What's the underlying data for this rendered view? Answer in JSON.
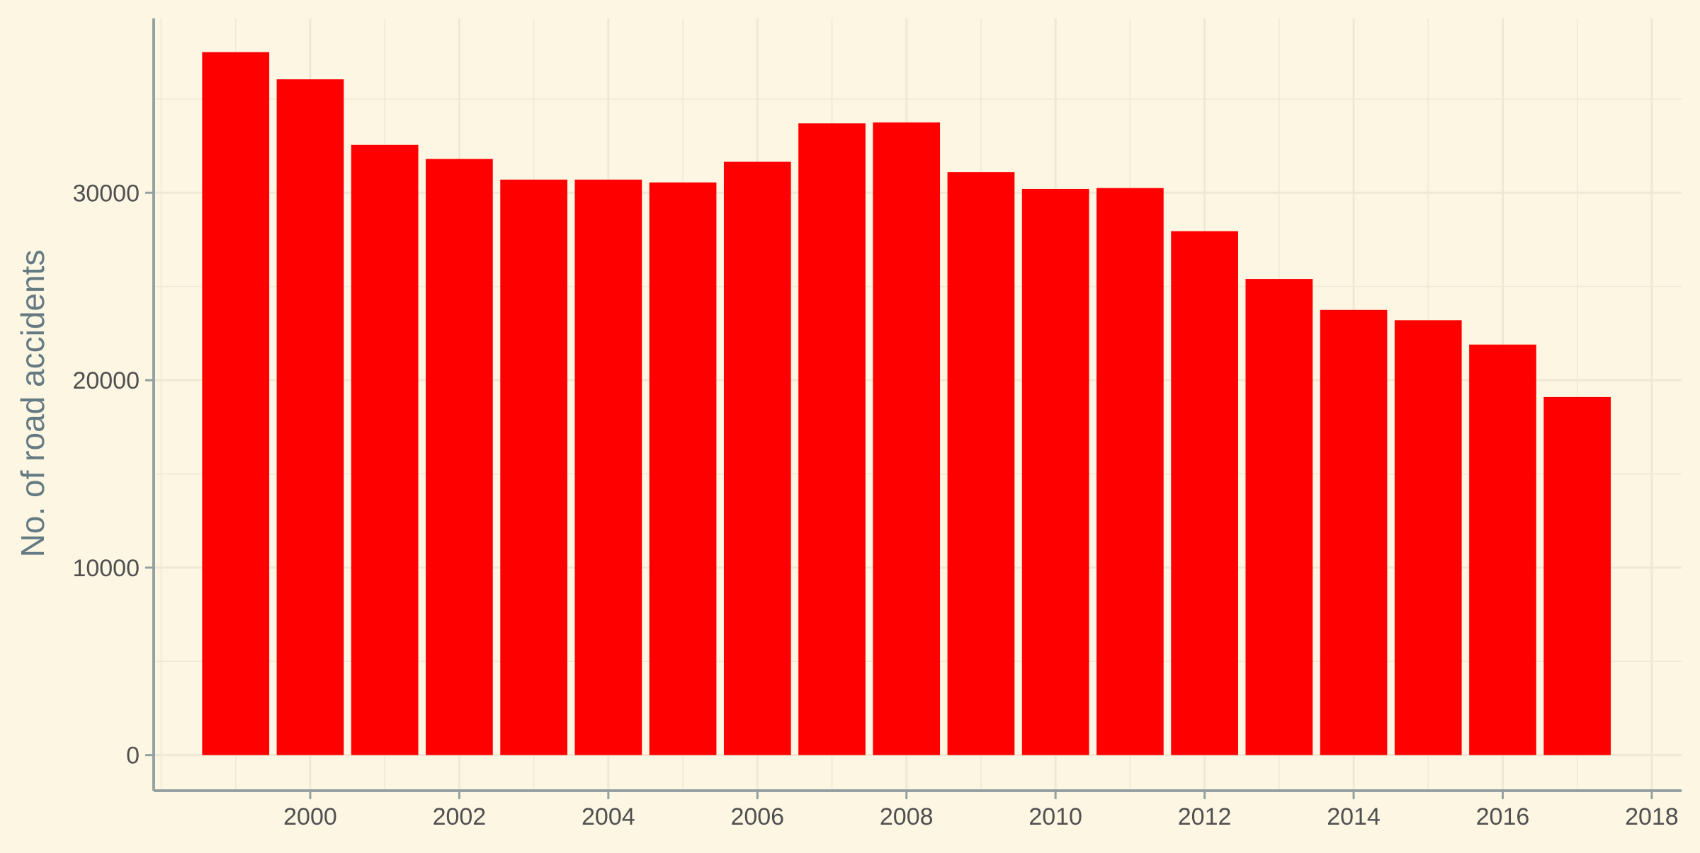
{
  "chart_data": {
    "type": "bar",
    "title": "",
    "xlabel": "",
    "ylabel": "No. of road accidents",
    "x": [
      1999,
      2000,
      2001,
      2002,
      2003,
      2004,
      2005,
      2006,
      2007,
      2008,
      2009,
      2010,
      2011,
      2012,
      2013,
      2014,
      2015,
      2016,
      2017
    ],
    "values": [
      37500,
      36050,
      32550,
      31800,
      30700,
      30700,
      30550,
      31650,
      33700,
      33750,
      31100,
      30200,
      30250,
      27950,
      25400,
      23750,
      23200,
      21900,
      19100
    ],
    "xlim": [
      1997.9,
      2018.4
    ],
    "ylim": [
      -1900,
      39300
    ],
    "x_ticks": [
      2000,
      2002,
      2004,
      2006,
      2008,
      2010,
      2012,
      2014,
      2016,
      2018
    ],
    "y_ticks": [
      0,
      10000,
      20000,
      30000
    ],
    "grid": true,
    "legend": "none",
    "colors": {
      "background": "#FDF6E3",
      "bar": "#FF0000",
      "grid": "#EEE8D5",
      "axis": "#93A1A1",
      "tick_text": "#505050",
      "axis_title": "#657B83"
    }
  }
}
